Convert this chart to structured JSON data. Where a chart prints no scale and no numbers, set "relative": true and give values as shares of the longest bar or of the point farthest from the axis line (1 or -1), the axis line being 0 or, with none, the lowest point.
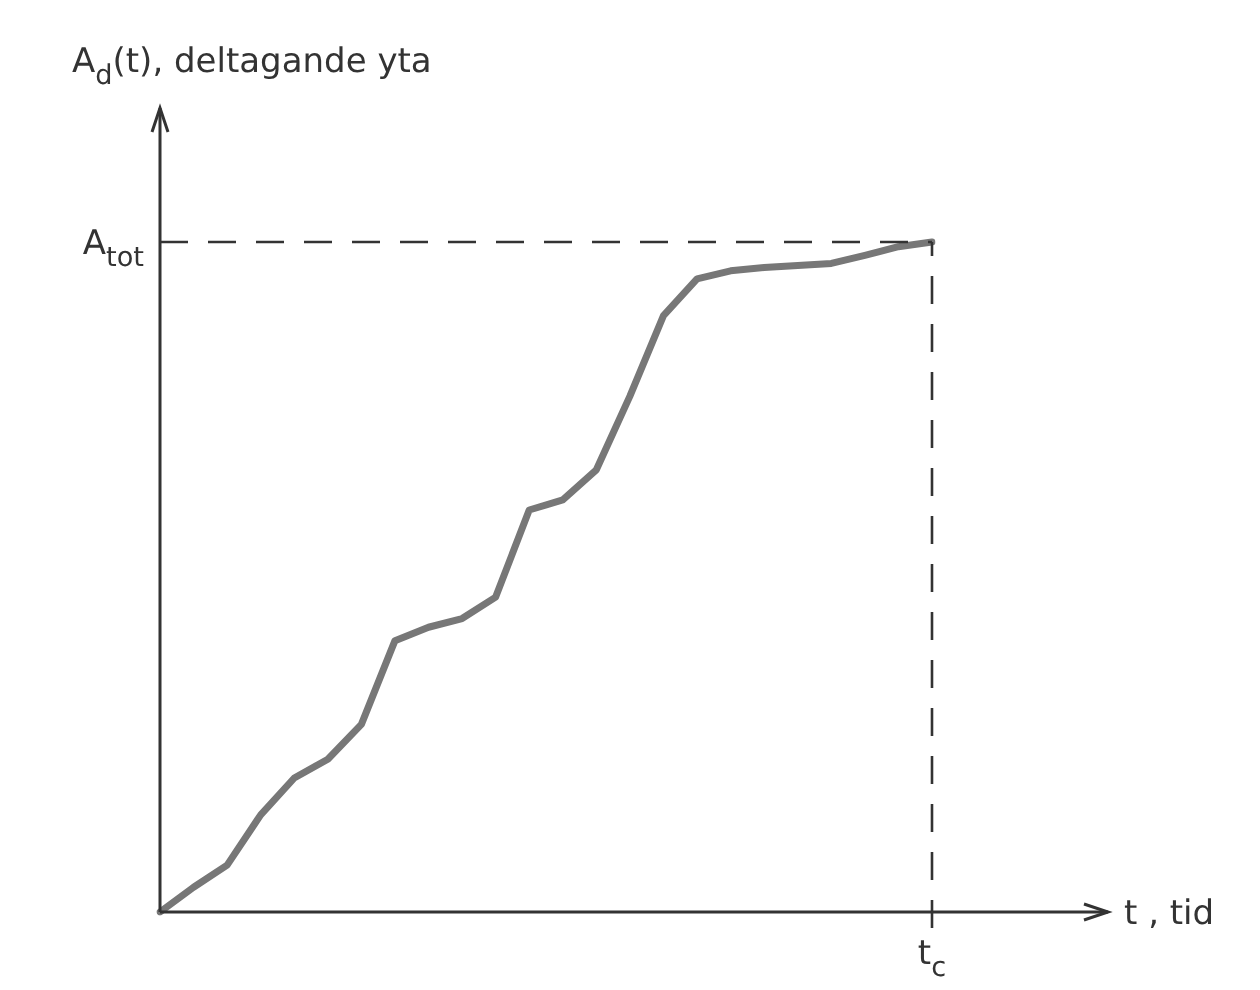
{
  "chart_data": {
    "type": "line",
    "relative": true,
    "ylabel": "A$_{d}$(t), deltagande yta",
    "color": "#777777",
    "marker": "none",
    "line_style": "solid",
    "legend": false,
    "categories": [
      null,
      null,
      null,
      null,
      null,
      null,
      null,
      null,
      null,
      null,
      null,
      null,
      null,
      null,
      null,
      null,
      null,
      null,
      null,
      null,
      null,
      null,
      null,
      null
    ],
    "values": [
      0,
      0.037,
      0.07,
      0.145,
      0.2,
      0.228,
      0.28,
      0.405,
      0.425,
      0.438,
      0.47,
      0.6,
      0.615,
      0.66,
      0.77,
      0.89,
      0.945,
      0.957,
      0.962,
      0.965,
      0.968,
      0.98,
      0.993,
      1
    ],
    "ref_lines": [
      {
        "axis": "y",
        "value": 1,
        "label": "A$_{tot}$",
        "line_style": "dashed",
        "color": "#333333"
      }
    ],
    "annotations": [
      "t$_{c}$",
      "t , tid"
    ]
  }
}
